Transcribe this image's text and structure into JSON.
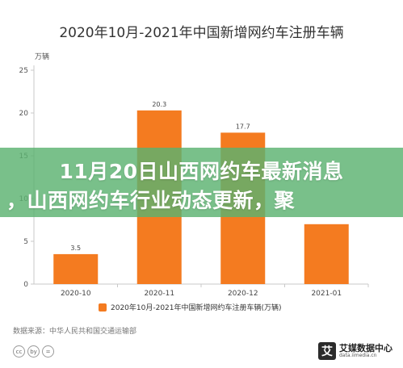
{
  "chart_data": {
    "type": "bar",
    "title": "2020年10月-2021年中国新增网约车注册车辆",
    "unit_label": "万辆",
    "categories": [
      "2020-10",
      "2020-11",
      "2020-12",
      "2021-01"
    ],
    "series": [
      {
        "name": "2020年10月-2021年中国新增网约车注册车辆(万辆)",
        "values": [
          3.5,
          20.3,
          17.7,
          7
        ],
        "data_labels": [
          "3.5",
          "20.3",
          "17.7",
          ""
        ]
      }
    ],
    "y_ticks": [
      0,
      5,
      10,
      15,
      20,
      25
    ],
    "ylim": [
      0,
      25
    ],
    "bar_color": "#f47b20",
    "grid": false,
    "legend_position": "bottom"
  },
  "source_text": "数据来源：中华人民共和国交通运输部",
  "cc_badge": [
    "cc",
    "by",
    "="
  ],
  "logo": {
    "mark": "艾",
    "cn_text": "艾媒数据中心",
    "en_text": "data.iimedia.cn",
    "icon": "iimedia-logo-icon"
  },
  "overlay": {
    "line1": "11月20日山西网约车最新消息",
    "line2": "，山西网约车行业动态更新，聚",
    "color": "#5cb270"
  }
}
